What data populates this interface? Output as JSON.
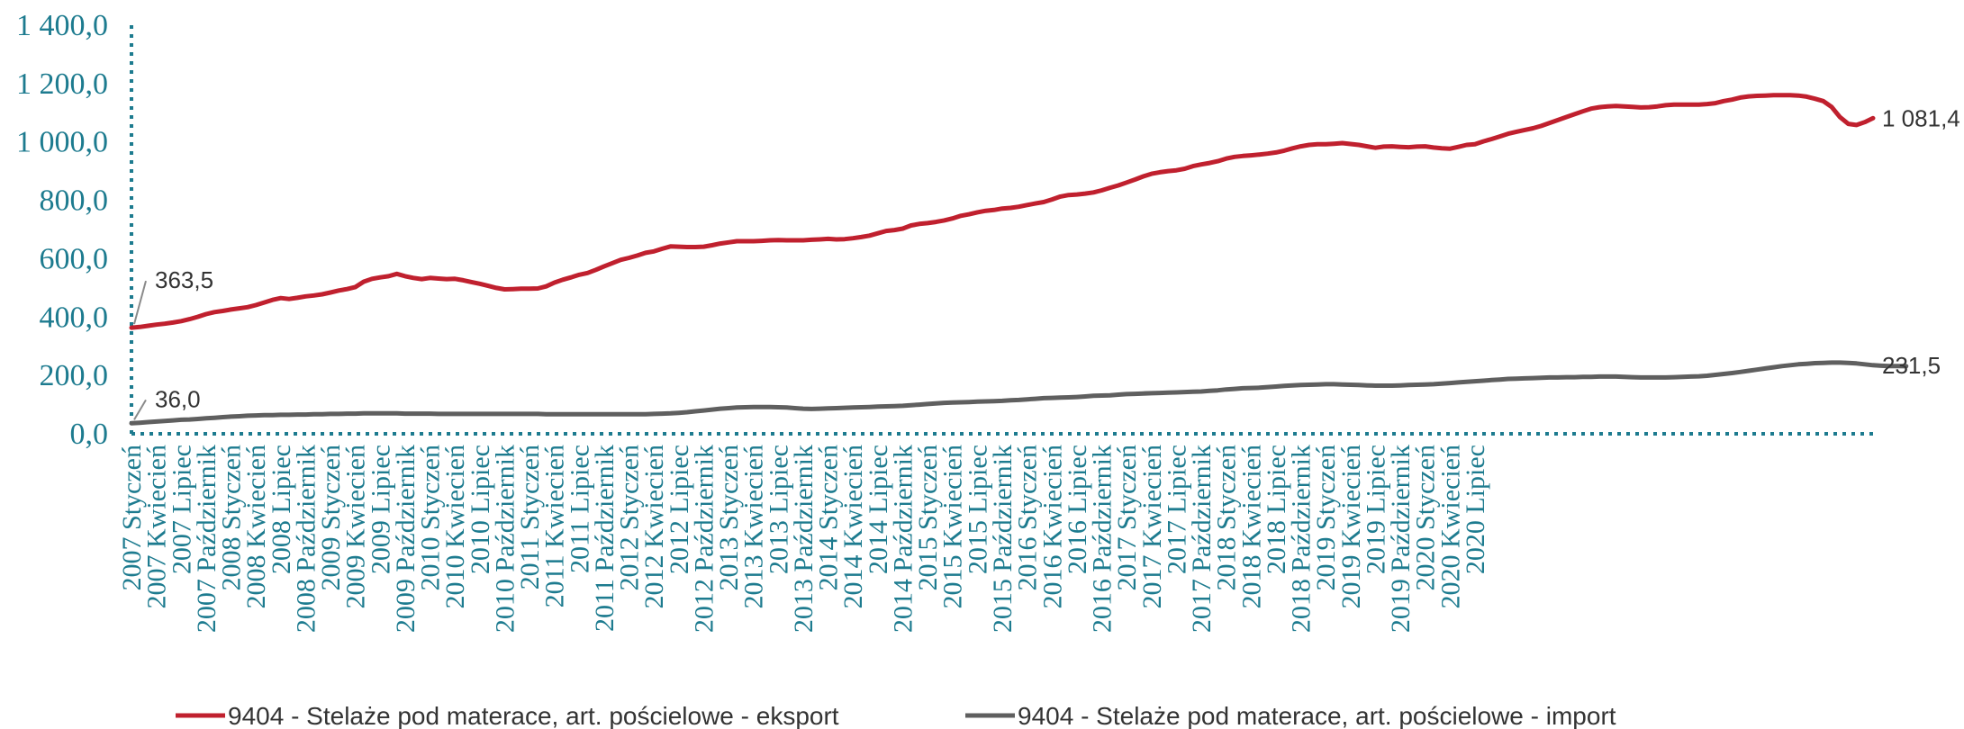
{
  "chart_data": {
    "type": "line",
    "title": "",
    "xlabel": "",
    "ylabel": "",
    "ylim": [
      0,
      1400
    ],
    "yticks": [
      "0,0",
      "200,0",
      "400,0",
      "600,0",
      "800,0",
      "1 000,0",
      "1 200,0",
      "1 400,0"
    ],
    "x_tick_labels": [
      "2007 Styczeń",
      "2007 Kwiecień",
      "2007 Lipiec",
      "2007 Październik",
      "2008 Styczeń",
      "2008 Kwiecień",
      "2008 Lipiec",
      "2008 Październik",
      "2009 Styczeń",
      "2009 Kwiecień",
      "2009 Lipiec",
      "2009 Październik",
      "2010 Styczeń",
      "2010 Kwiecień",
      "2010 Lipiec",
      "2010 Październik",
      "2011 Styczeń",
      "2011 Kwiecień",
      "2011 Lipiec",
      "2011 Październik",
      "2012 Styczeń",
      "2012 Kwiecień",
      "2012 Lipiec",
      "2012 Październik",
      "2013 Styczeń",
      "2013 Kwiecień",
      "2013 Lipiec",
      "2013 Październik",
      "2014 Styczeń",
      "2014 Kwiecień",
      "2014 Lipiec",
      "2014 Październik",
      "2015 Styczeń",
      "2015 Kwiecień",
      "2015 Lipiec",
      "2015 Październik",
      "2016 Styczeń",
      "2016 Kwiecień",
      "2016 Lipiec",
      "2016 Październik",
      "2017 Styczeń",
      "2017 Kwiecień",
      "2017 Lipiec",
      "2017 Październik",
      "2018 Styczeń",
      "2018 Kwiecień",
      "2018 Lipiec",
      "2018 Październik",
      "2019 Styczeń",
      "2019 Kwiecień",
      "2019 Lipiec",
      "2019 Październik",
      "2020 Styczeń",
      "2020 Kwiecień",
      "2020 Lipiec"
    ],
    "x_tick_every_months": 3,
    "grid": false,
    "legend_position": "bottom",
    "series": [
      {
        "name": "9404 - Stelaże pod materace, art. pościelowe - eksport",
        "color": "#c0202e",
        "start_label": "363,5",
        "end_label": "1 081,4",
        "values": [
          363.5,
          366,
          370,
          374,
          377,
          381,
          386,
          393,
          401,
          410,
          417,
          421,
          426,
          430,
          434,
          441,
          450,
          459,
          465,
          462,
          466,
          471,
          474,
          478,
          484,
          491,
          496,
          503,
          521,
          531,
          536,
          540,
          548,
          540,
          534,
          530,
          534,
          532,
          530,
          531,
          526,
          520,
          514,
          507,
          500,
          495,
          496,
          497,
          497,
          498,
          505,
          518,
          528,
          536,
          545,
          551,
          562,
          574,
          585,
          596,
          603,
          611,
          620,
          625,
          634,
          642,
          641,
          640,
          640,
          641,
          646,
          652,
          656,
          660,
          660,
          660,
          661,
          663,
          664,
          663,
          663,
          663,
          665,
          666,
          668,
          666,
          667,
          670,
          674,
          679,
          687,
          695,
          698,
          703,
          714,
          719,
          722,
          726,
          731,
          738,
          747,
          752,
          759,
          764,
          767,
          772,
          774,
          778,
          784,
          789,
          794,
          803,
          813,
          818,
          820,
          823,
          827,
          834,
          843,
          851,
          861,
          871,
          882,
          891,
          896,
          900,
          903,
          908,
          917,
          923,
          928,
          934,
          943,
          949,
          952,
          954,
          957,
          960,
          964,
          970,
          978,
          985,
          990,
          992,
          992,
          994,
          996,
          993,
          990,
          985,
          980,
          984,
          985,
          983,
          982,
          984,
          985,
          981,
          978,
          977,
          983,
          990,
          992,
          1002,
          1010,
          1019,
          1028,
          1035,
          1041,
          1047,
          1055,
          1065,
          1075,
          1085,
          1095,
          1105,
          1114,
          1119,
          1122,
          1123,
          1122,
          1120,
          1118,
          1119,
          1122,
          1126,
          1128,
          1128,
          1128,
          1128,
          1130,
          1133,
          1140,
          1145,
          1152,
          1156,
          1158,
          1159,
          1160,
          1160,
          1160,
          1159,
          1155,
          1148,
          1140,
          1120,
          1085,
          1062,
          1058,
          1068,
          1081.4
        ]
      },
      {
        "name": "9404 - Stelaże pod materace, art. pościelowe  - import",
        "color": "#5f5f5f",
        "start_label": "36,0",
        "end_label": "231,5",
        "values": [
          36,
          38,
          40,
          42,
          44,
          46,
          48,
          49,
          51,
          53,
          55,
          57,
          59,
          60,
          62,
          63,
          64,
          64,
          65,
          65,
          66,
          66,
          67,
          67,
          68,
          68,
          69,
          69,
          70,
          70,
          70,
          70,
          70,
          69,
          69,
          69,
          69,
          68,
          68,
          68,
          68,
          68,
          68,
          68,
          68,
          68,
          68,
          68,
          68,
          68,
          67,
          67,
          67,
          67,
          67,
          67,
          67,
          67,
          67,
          67,
          67,
          67,
          67,
          68,
          69,
          70,
          72,
          74,
          77,
          80,
          83,
          86,
          88,
          90,
          91,
          92,
          92,
          92,
          91,
          90,
          88,
          86,
          85,
          86,
          87,
          88,
          89,
          90,
          91,
          92,
          93,
          94,
          95,
          96,
          98,
          100,
          102,
          104,
          106,
          107,
          108,
          109,
          110,
          111,
          112,
          113,
          115,
          116,
          118,
          120,
          122,
          123,
          124,
          125,
          126,
          128,
          130,
          131,
          132,
          134,
          136,
          137,
          138,
          139,
          140,
          141,
          142,
          143,
          144,
          145,
          147,
          149,
          152,
          154,
          156,
          157,
          158,
          160,
          162,
          164,
          166,
          167,
          168,
          169,
          170,
          170,
          169,
          168,
          167,
          166,
          165,
          165,
          165,
          166,
          167,
          168,
          169,
          170,
          172,
          174,
          176,
          178,
          180,
          182,
          184,
          186,
          188,
          189,
          190,
          191,
          192,
          193,
          193,
          194,
          194,
          195,
          195,
          196,
          196,
          196,
          195,
          194,
          193,
          193,
          193,
          193,
          194,
          195,
          196,
          197,
          199,
          202,
          205,
          208,
          212,
          216,
          220,
          224,
          228,
          232,
          235,
          238,
          240,
          242,
          243,
          244,
          244,
          243,
          241,
          238,
          235,
          233,
          232,
          232,
          231.5
        ]
      }
    ]
  }
}
